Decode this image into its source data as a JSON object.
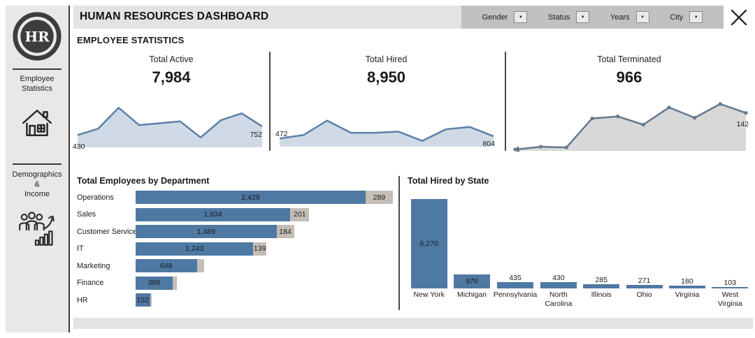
{
  "header": {
    "title": "HUMAN RESOURCES DASHBOARD",
    "filters": [
      {
        "label": "Gender"
      },
      {
        "label": "Status"
      },
      {
        "label": "Years"
      },
      {
        "label": "City"
      }
    ]
  },
  "sidebar": {
    "logo_text": "HR",
    "items": [
      {
        "label": "Employee\nStatistics",
        "icon": "house-icon"
      },
      {
        "label": "Demographics\n&\nIncome",
        "icon": "people-growth-icon"
      }
    ]
  },
  "section_title": "EMPLOYEE STATISTICS",
  "colors": {
    "bar_blue": "#4e79a3",
    "bar_gray": "#c4beb7",
    "line_blue": "#5b80a8",
    "fill_blue": "#cfdae6",
    "line_slate": "#64798f",
    "fill_gray": "#d8d8d8",
    "divider_dark": "#4a4a4a"
  },
  "chart_data": [
    {
      "id": "active-trend",
      "type": "area",
      "title": "Total Active",
      "kpi_value": "7,984",
      "first_label": "430",
      "last_label": "752",
      "values": [
        20,
        30,
        64,
        36,
        39,
        42,
        16,
        44,
        55,
        34
      ],
      "ymax": 70,
      "markers": false,
      "line_color": "#5b80a8",
      "fill_color": "#cfdae6"
    },
    {
      "id": "hired-trend",
      "type": "area",
      "title": "Total Hired",
      "kpi_value": "8,950",
      "first_label": "472",
      "last_label": "804",
      "values": [
        14,
        20,
        45,
        24,
        24,
        26,
        10,
        30,
        34,
        18
      ],
      "ymax": 70,
      "markers": false,
      "line_color": "#5b80a8",
      "fill_color": "#cfdae6"
    },
    {
      "id": "terminated-trend",
      "type": "area",
      "title": "Total Terminated",
      "kpi_value": "966",
      "first_label": "1",
      "last_label": "142",
      "values": [
        2,
        6,
        5,
        47,
        50,
        38,
        63,
        48,
        68,
        55
      ],
      "ymax": 76,
      "markers": true,
      "line_color": "#64798f",
      "fill_color": "#d8d8d8"
    },
    {
      "id": "employees-by-department",
      "type": "bar",
      "orientation": "horizontal",
      "stacked": true,
      "title": "Total Employees by Department",
      "categories": [
        "Operations",
        "Sales",
        "Customer Service",
        "IT",
        "Marketing",
        "Finance",
        "HR"
      ],
      "series": [
        {
          "name": "primary",
          "color": "#4e79a3",
          "values": [
            2429,
            1634,
            1489,
            1243,
            648,
            389,
            152
          ],
          "labels": [
            "2,429",
            "1,634",
            "1,489",
            "1,243",
            "648",
            "389",
            "152"
          ]
        },
        {
          "name": "secondary",
          "color": "#c4beb7",
          "values": [
            289,
            201,
            184,
            139,
            77,
            46,
            18
          ],
          "labels": [
            "289",
            "201",
            "184",
            "139",
            "",
            "",
            ""
          ]
        }
      ],
      "xmax": 2718
    },
    {
      "id": "hired-by-state",
      "type": "bar",
      "orientation": "vertical",
      "title": "Total Hired by State",
      "categories": [
        "New York",
        "Michigan",
        "Pennsylvania",
        "North Carolina",
        "Illinois",
        "Ohio",
        "Virginia",
        "West Virginia"
      ],
      "values": [
        6270,
        976,
        435,
        430,
        285,
        271,
        180,
        103
      ],
      "labels": [
        "6,270",
        "976",
        "435",
        "430",
        "285",
        "271",
        "180",
        "103"
      ],
      "color": "#4e79a3",
      "ymax": 6270
    }
  ]
}
